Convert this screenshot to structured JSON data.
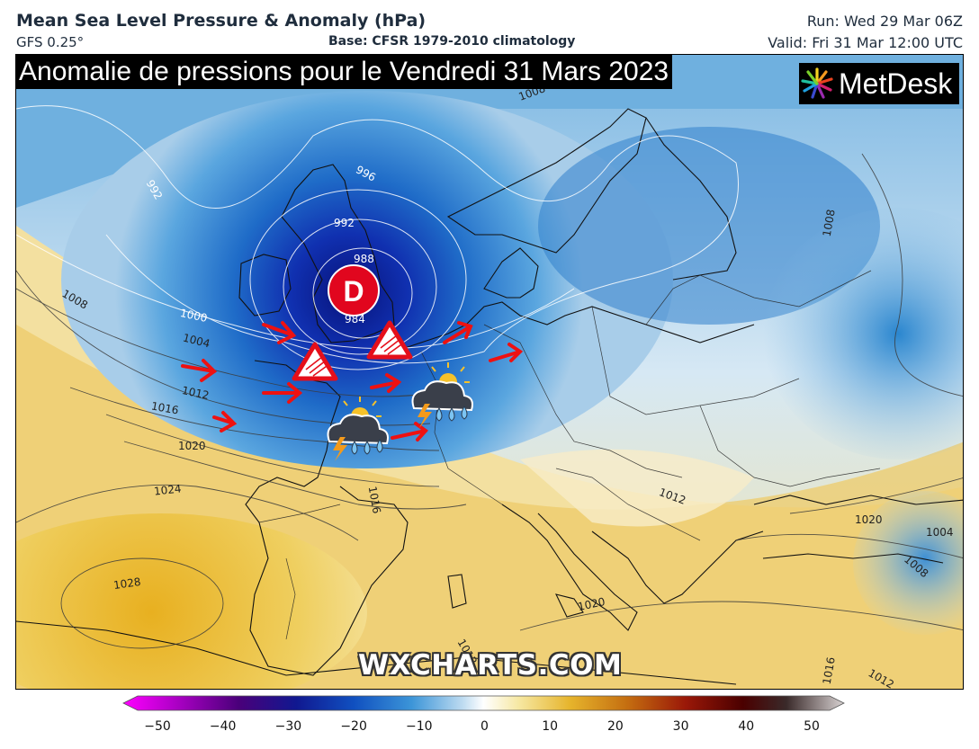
{
  "header": {
    "title": "Mean Sea Level Pressure & Anomaly (hPa)",
    "model": "GFS 0.25°",
    "base": "Base: CFSR 1979-2010 climatology",
    "run": "Run: Wed 29 Mar 06Z",
    "valid": "Valid: Fri 31 Mar 12:00 UTC"
  },
  "banner": "Anomalie de pressions pour le Vendredi 31 Mars 2023",
  "logo": {
    "text": "MetDesk",
    "icon": "metdesk-starburst-icon"
  },
  "watermark": "WXCHARTS.COM",
  "low": {
    "symbol": "D",
    "color": "#e1061e"
  },
  "isobars": [
    {
      "label": "992"
    },
    {
      "label": "996"
    },
    {
      "label": "988"
    },
    {
      "label": "984"
    },
    {
      "label": "1000"
    },
    {
      "label": "1004"
    },
    {
      "label": "1008"
    },
    {
      "label": "1012"
    },
    {
      "label": "1016"
    },
    {
      "label": "1020"
    },
    {
      "label": "1024"
    },
    {
      "label": "1028"
    },
    {
      "label": "1020"
    },
    {
      "label": "1008"
    },
    {
      "label": "1016"
    },
    {
      "label": "1008"
    },
    {
      "label": "1012"
    },
    {
      "label": "1020"
    },
    {
      "label": "1004"
    },
    {
      "label": "1008"
    },
    {
      "label": "1012"
    },
    {
      "label": "1012"
    },
    {
      "label": "1016"
    },
    {
      "label": "1020"
    }
  ],
  "icons": [
    "wind-warning-icon",
    "wind-warning-icon",
    "thunderstorm-rain-icon",
    "thunderstorm-rain-icon",
    "wind-arrow-icon"
  ],
  "colorbar": {
    "ticks": [
      "−50",
      "−40",
      "−30",
      "−20",
      "−10",
      "0",
      "10",
      "20",
      "30",
      "40",
      "50"
    ],
    "min": -50,
    "max": 50,
    "colors": [
      "#ff00ff",
      "#9a00b8",
      "#3a0080",
      "#0a1a9c",
      "#1565c0",
      "#4aa3df",
      "#c7dff0",
      "#ffffff",
      "#f5e6a0",
      "#e8b830",
      "#c47a10",
      "#a02008",
      "#6a0000",
      "#3a0a0a",
      "#b0a8a8"
    ]
  }
}
